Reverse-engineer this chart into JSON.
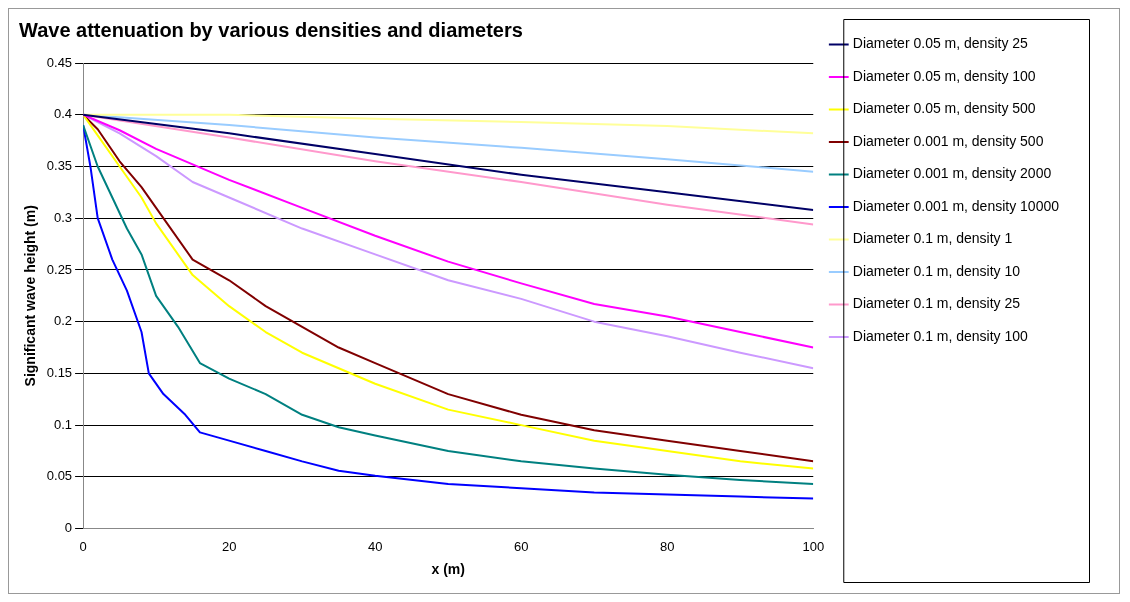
{
  "chart_data": {
    "type": "line",
    "title": "Wave attenuation by various densities and diameters",
    "xlabel": "x (m)",
    "ylabel": "Significant wave height (m)",
    "xlim": [
      0,
      100
    ],
    "xticks": [
      0,
      20,
      40,
      60,
      80,
      100
    ],
    "ylim": [
      0,
      0.45
    ],
    "yticks": [
      0,
      0.05,
      0.1,
      0.15,
      0.2,
      0.25,
      0.3,
      0.35,
      0.4,
      0.45
    ],
    "grid": "y",
    "legend": "right",
    "marker": "none",
    "line_style": "solid",
    "series": [
      {
        "name": "Diameter 0.05 m, density 25",
        "color": "#000066",
        "x": [
          0,
          20,
          40,
          60,
          80,
          100
        ],
        "values": [
          0.4,
          0.382,
          0.362,
          0.342,
          0.325,
          0.308
        ]
      },
      {
        "name": "Diameter 0.05 m, density 100",
        "color": "#ff00ff",
        "x": [
          0,
          5,
          10,
          20,
          30,
          40,
          50,
          60,
          70,
          80,
          90,
          100
        ],
        "values": [
          0.4,
          0.385,
          0.367,
          0.337,
          0.31,
          0.283,
          0.258,
          0.237,
          0.217,
          0.205,
          0.19,
          0.175
        ]
      },
      {
        "name": "Diameter 0.05 m, density 500",
        "color": "#ffff00",
        "x": [
          0,
          2,
          5,
          8,
          10,
          15,
          20,
          25,
          30,
          40,
          50,
          60,
          70,
          80,
          90,
          100
        ],
        "values": [
          0.4,
          0.38,
          0.35,
          0.32,
          0.295,
          0.245,
          0.215,
          0.19,
          0.17,
          0.14,
          0.115,
          0.1,
          0.085,
          0.075,
          0.065,
          0.058
        ]
      },
      {
        "name": "Diameter 0.001 m, density 500",
        "color": "#800000",
        "x": [
          0,
          2,
          5,
          8,
          10,
          15,
          20,
          25,
          30,
          35,
          40,
          50,
          60,
          70,
          80,
          90,
          100
        ],
        "values": [
          0.4,
          0.386,
          0.355,
          0.33,
          0.31,
          0.26,
          0.24,
          0.215,
          0.195,
          0.175,
          0.16,
          0.13,
          0.11,
          0.095,
          0.085,
          0.075,
          0.065
        ]
      },
      {
        "name": "Diameter 0.001 m, density 2000",
        "color": "#008080",
        "x": [
          0,
          2,
          4,
          6,
          8,
          10,
          13,
          16,
          20,
          25,
          30,
          35,
          40,
          50,
          60,
          70,
          80,
          90,
          100
        ],
        "values": [
          0.39,
          0.35,
          0.32,
          0.29,
          0.265,
          0.225,
          0.195,
          0.16,
          0.145,
          0.13,
          0.11,
          0.098,
          0.09,
          0.075,
          0.065,
          0.058,
          0.052,
          0.047,
          0.043
        ]
      },
      {
        "name": "Diameter 0.001 m, density 10000",
        "color": "#0000ff",
        "x": [
          0,
          1,
          2,
          4,
          6,
          8,
          9,
          11,
          14,
          16,
          20,
          25,
          30,
          35,
          40,
          50,
          60,
          70,
          80,
          90,
          100
        ],
        "values": [
          0.39,
          0.35,
          0.3,
          0.26,
          0.23,
          0.19,
          0.15,
          0.13,
          0.11,
          0.093,
          0.085,
          0.075,
          0.065,
          0.056,
          0.051,
          0.043,
          0.039,
          0.035,
          0.033,
          0.031,
          0.029
        ]
      },
      {
        "name": "Diameter 0.1 m, density 1",
        "color": "#ffff99",
        "x": [
          0,
          20,
          40,
          60,
          80,
          100
        ],
        "values": [
          0.4,
          0.4,
          0.396,
          0.393,
          0.389,
          0.382
        ]
      },
      {
        "name": "Diameter 0.1 m, density 10",
        "color": "#99ccff",
        "x": [
          0,
          20,
          40,
          60,
          80,
          100
        ],
        "values": [
          0.4,
          0.39,
          0.378,
          0.368,
          0.357,
          0.345
        ]
      },
      {
        "name": "Diameter 0.1 m, density 25",
        "color": "#ff99cc",
        "x": [
          0,
          20,
          40,
          60,
          80,
          100
        ],
        "values": [
          0.4,
          0.378,
          0.355,
          0.335,
          0.313,
          0.294
        ]
      },
      {
        "name": "Diameter 0.1 m, density 100",
        "color": "#cc99ff",
        "x": [
          0,
          5,
          10,
          15,
          20,
          30,
          40,
          50,
          60,
          70,
          80,
          90,
          100
        ],
        "values": [
          0.4,
          0.382,
          0.36,
          0.335,
          0.32,
          0.29,
          0.265,
          0.24,
          0.222,
          0.2,
          0.186,
          0.17,
          0.155
        ]
      }
    ]
  }
}
